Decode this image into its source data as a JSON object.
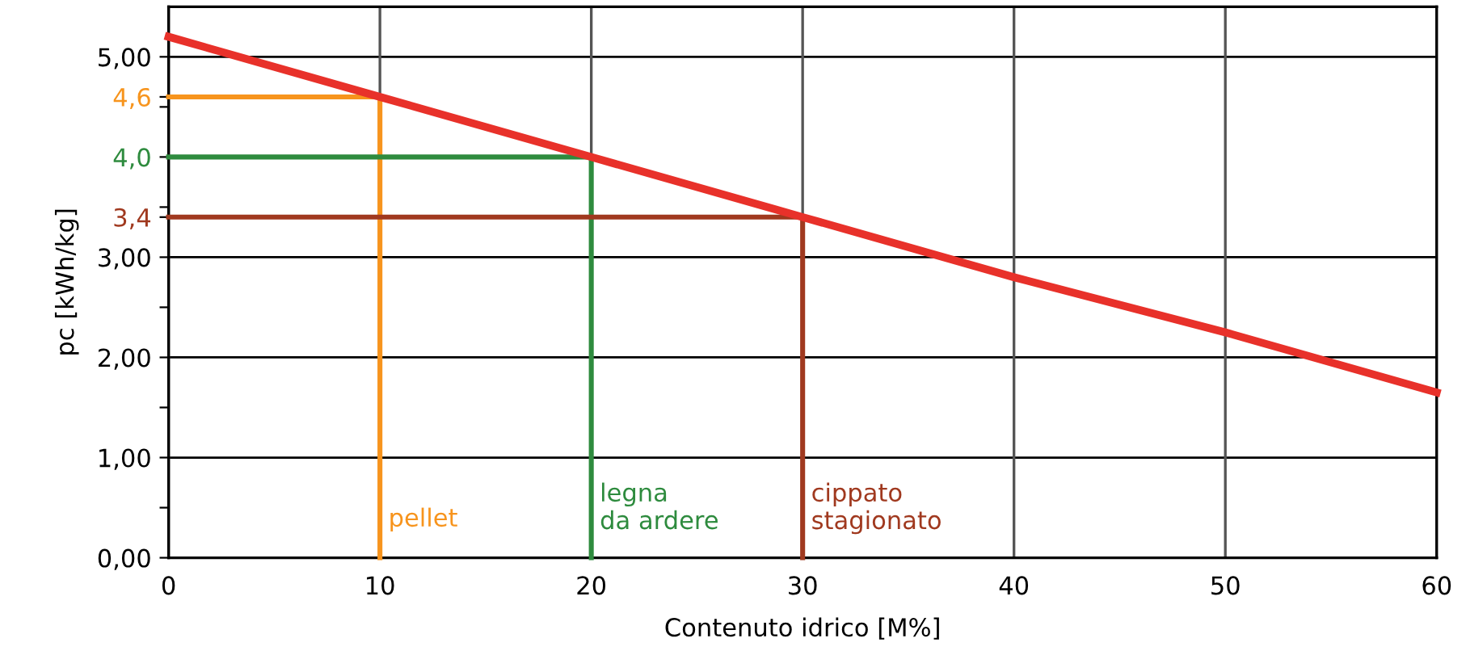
{
  "chart_data": {
    "type": "line",
    "xlabel": "Contenuto idrico [M%]",
    "ylabel": "pc [kWh/kg]",
    "series": [
      {
        "color": "#e8312a",
        "x": [
          0,
          10,
          20,
          30,
          40,
          50,
          60
        ],
        "values": [
          5.2,
          4.6,
          4.0,
          3.4,
          2.8,
          2.25,
          1.65
        ]
      },
      {
        "color": "#f7941d",
        "x": [
          0,
          10,
          10
        ],
        "values": [
          4.6,
          4.6,
          0
        ]
      },
      {
        "color": "#2e8b3e",
        "x": [
          0,
          20,
          20
        ],
        "values": [
          4.0,
          4.0,
          0
        ]
      },
      {
        "color": "#a0391f",
        "x": [
          0,
          30,
          30
        ],
        "values": [
          3.4,
          3.4,
          0
        ]
      }
    ],
    "annotations": [
      {
        "text": "pellet",
        "x": 10,
        "y": 0.5
      },
      {
        "text": "legna\nda ardere",
        "x": 20,
        "y": 0.75
      },
      {
        "text": "cippato\nstagionato",
        "x": 30,
        "y": 0.75
      }
    ],
    "xlim": [
      0,
      60
    ],
    "xticks": [
      0,
      10,
      20,
      30,
      40,
      50,
      60
    ],
    "ylim": [
      0,
      5.5
    ],
    "yticks": [
      {
        "value": 0,
        "label": "0,00"
      },
      {
        "value": 0.5,
        "label": null
      },
      {
        "value": 1,
        "label": "1,00"
      },
      {
        "value": 1.5,
        "label": null
      },
      {
        "value": 2,
        "label": "2,00"
      },
      {
        "value": 2.5,
        "label": null
      },
      {
        "value": 3,
        "label": "3,00"
      },
      {
        "value": 3.4,
        "label": "3,4"
      },
      {
        "value": 3.5,
        "label": null
      },
      {
        "value": 4.0,
        "label": "4,0"
      },
      {
        "value": 4.5,
        "label": null
      },
      {
        "value": 4.6,
        "label": "4,6"
      },
      {
        "value": 5,
        "label": "5,00"
      }
    ],
    "grid": true,
    "line_style": "solid",
    "marker": "none"
  }
}
